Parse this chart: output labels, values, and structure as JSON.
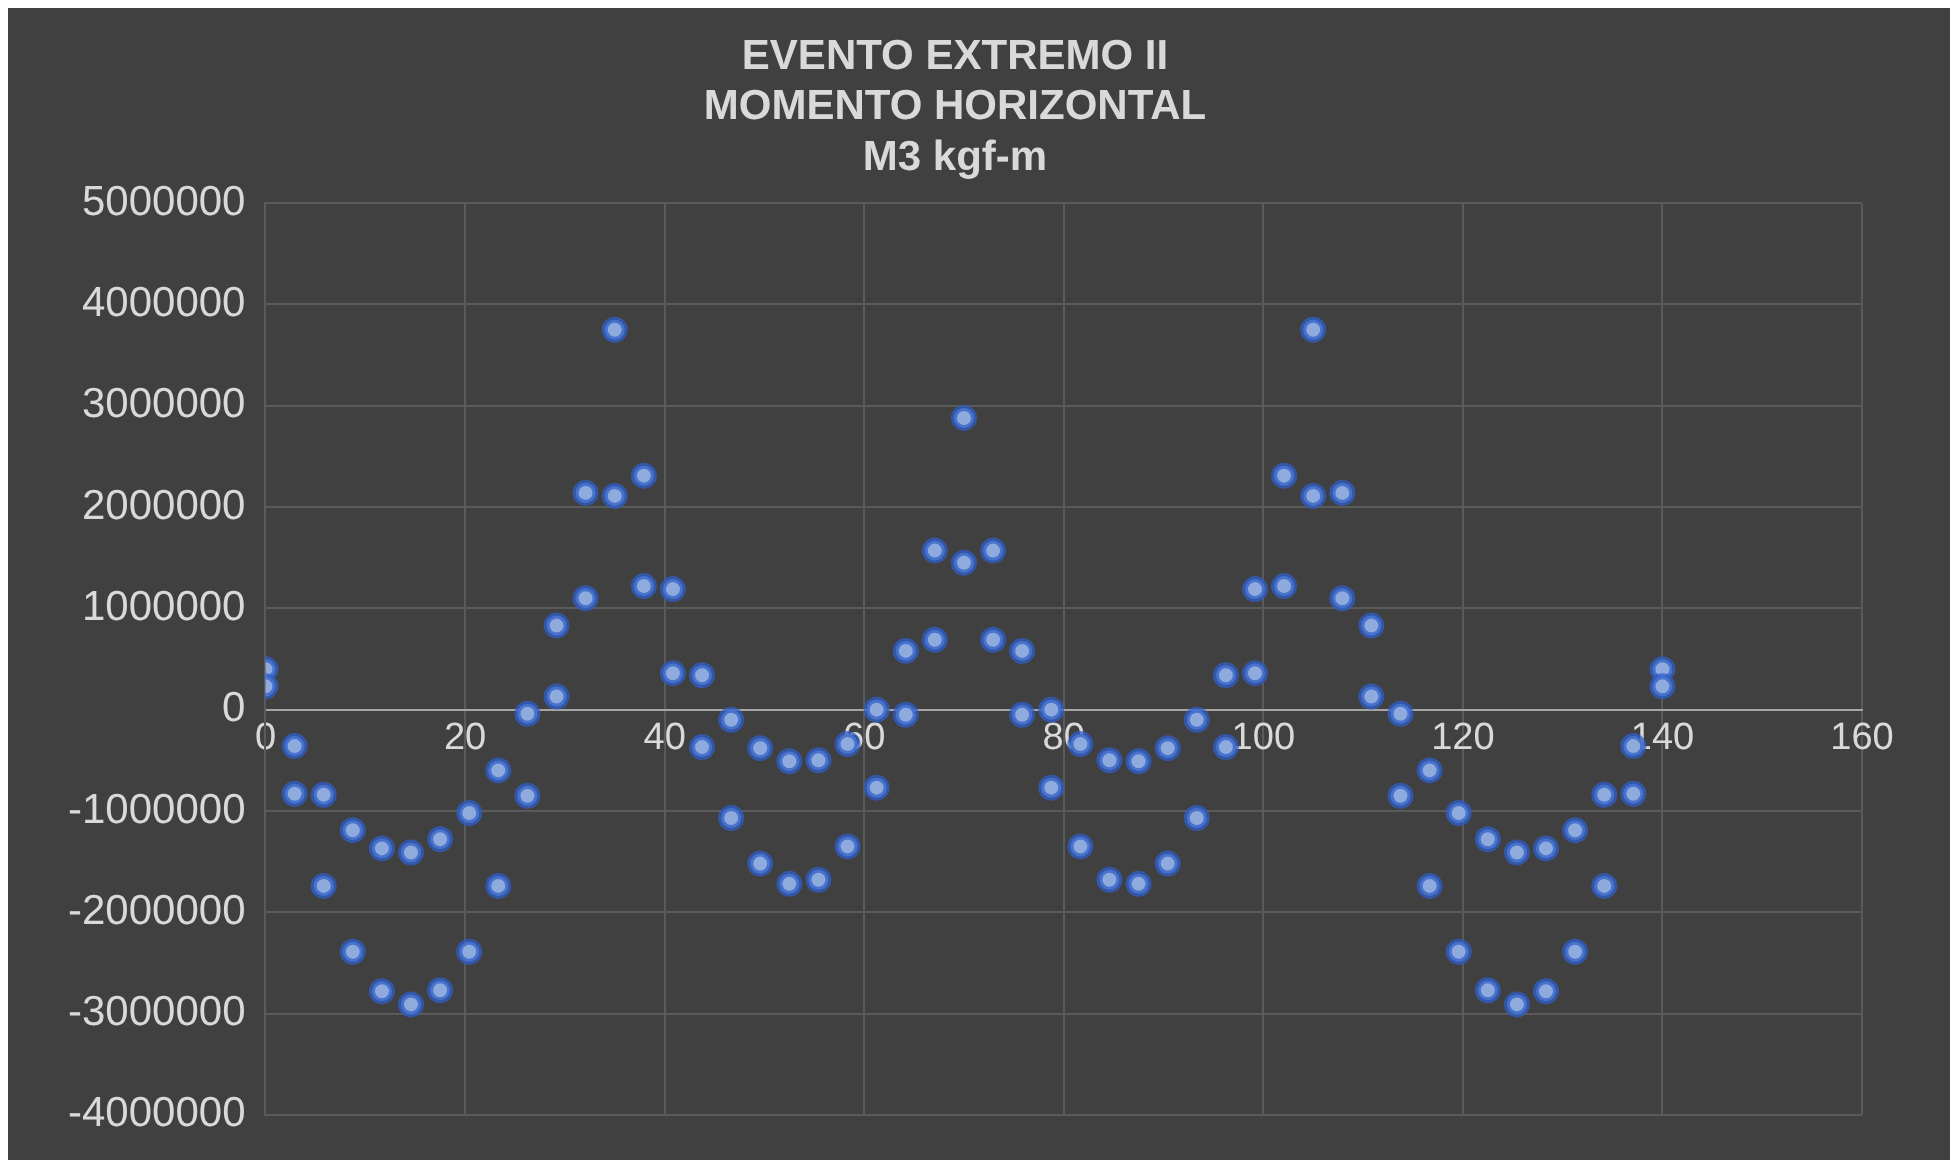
{
  "chart_data": {
    "type": "scatter",
    "title": "EVENTO EXTREMO II\nMOMENTO HORIZONTAL\nM3 kgf-m",
    "xlim": [
      0,
      160
    ],
    "xticks": [
      0,
      20,
      40,
      60,
      80,
      100,
      120,
      140,
      160
    ],
    "ylim": [
      -4000000,
      5000000
    ],
    "yticks": [
      -4000000,
      -3000000,
      -2000000,
      -1000000,
      0,
      1000000,
      2000000,
      3000000,
      4000000,
      5000000
    ],
    "grid": true,
    "legend": false,
    "marker": "circle",
    "series": [
      {
        "color": "#8faadc",
        "x": [
          0,
          0,
          2.92,
          2.92,
          5.83,
          5.83,
          8.75,
          8.75,
          11.67,
          11.67,
          14.58,
          14.58,
          17.5,
          17.5,
          20.42,
          20.42,
          23.33,
          23.33,
          26.25,
          26.25,
          29.17,
          29.17,
          32.08,
          32.08,
          35,
          35,
          37.92,
          37.92,
          40.83,
          40.83,
          43.75,
          43.75,
          46.67,
          46.67,
          49.58,
          49.58,
          52.5,
          52.5,
          55.42,
          55.42,
          58.33,
          58.33,
          61.25,
          61.25,
          64.17,
          64.17,
          67.08,
          67.08,
          70,
          70,
          72.92,
          72.92,
          75.83,
          75.83,
          78.75,
          78.75,
          81.67,
          81.67,
          84.58,
          84.58,
          87.5,
          87.5,
          90.42,
          90.42,
          93.33,
          93.33,
          96.25,
          96.25,
          99.17,
          99.17,
          102.08,
          102.08,
          105,
          105,
          107.92,
          107.92,
          110.83,
          110.83,
          113.75,
          113.75,
          116.67,
          116.67,
          119.58,
          119.58,
          122.5,
          122.5,
          125.42,
          125.42,
          128.33,
          128.33,
          131.25,
          131.25,
          134.17,
          134.17,
          137.08,
          137.08,
          140,
          140
        ],
        "values": [
          400000,
          230000,
          -360000,
          -830000,
          -840000,
          -1740000,
          -1190000,
          -2390000,
          -1370000,
          -2780000,
          -1410000,
          -2910000,
          -1280000,
          -2770000,
          -1020000,
          -2390000,
          -600000,
          -1740000,
          -40000,
          -850000,
          130000,
          830000,
          1100000,
          2140000,
          2110000,
          3750000,
          2310000,
          1220000,
          1190000,
          360000,
          340000,
          -370000,
          -100000,
          -1070000,
          -380000,
          -1520000,
          -510000,
          -1720000,
          -500000,
          -1680000,
          -340000,
          -1350000,
          0,
          -770000,
          -50000,
          580000,
          690000,
          1570000,
          1450000,
          2880000,
          690000,
          1570000,
          -50000,
          580000,
          0,
          -770000,
          -340000,
          -1350000,
          -500000,
          -1680000,
          -510000,
          -1720000,
          -380000,
          -1520000,
          -100000,
          -1070000,
          340000,
          -370000,
          1190000,
          360000,
          2310000,
          1220000,
          2110000,
          3750000,
          1100000,
          2140000,
          130000,
          830000,
          -40000,
          -850000,
          -600000,
          -1740000,
          -1020000,
          -2390000,
          -1280000,
          -2770000,
          -1410000,
          -2910000,
          -1370000,
          -2780000,
          -1190000,
          -2390000,
          -840000,
          -1740000,
          -360000,
          -830000,
          400000,
          230000
        ]
      }
    ]
  }
}
